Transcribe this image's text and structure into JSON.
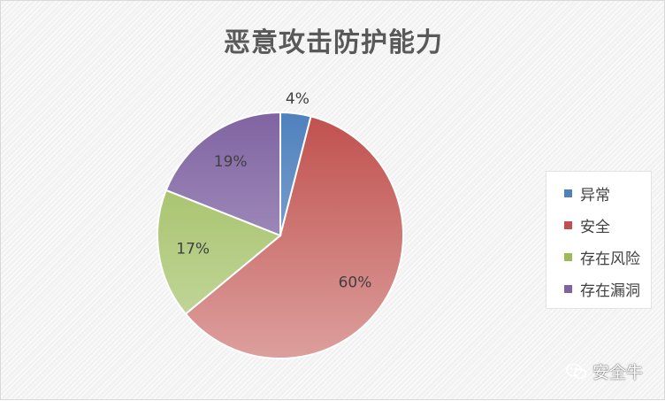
{
  "chart_data": {
    "type": "pie",
    "title": "恶意攻击防护能力",
    "categories": [
      "异常",
      "安全",
      "存在风险",
      "存在漏洞"
    ],
    "values": [
      4,
      60,
      17,
      19
    ],
    "data_labels": [
      "4%",
      "60%",
      "17%",
      "19%"
    ],
    "colors": [
      "#4f81bd",
      "#c0504d",
      "#9bbb59",
      "#8064a2"
    ],
    "legend_position": "right",
    "start_angle": "top, clockwise"
  },
  "watermark": {
    "icon": "wechat-icon",
    "text": "安全牛"
  }
}
